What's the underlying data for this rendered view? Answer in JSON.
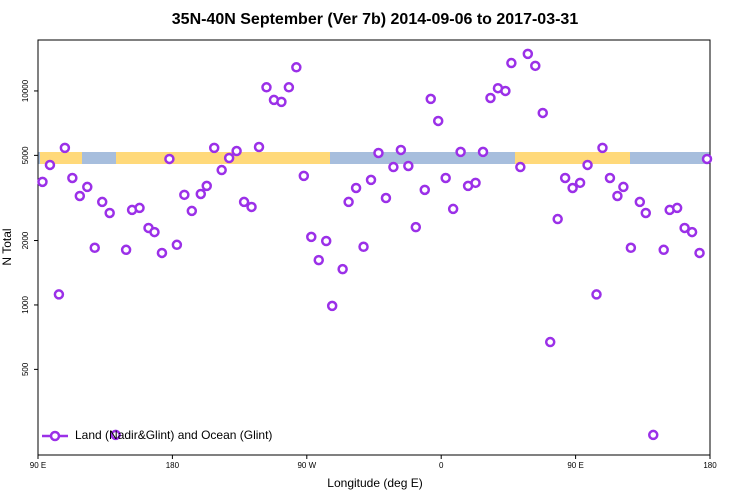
{
  "chart_data": {
    "type": "scatter",
    "title": "35N-40N September (Ver 7b)   2014-09-06 to 2017-03-31",
    "x_label": "Longitude (deg E)",
    "y_label": "N Total",
    "ylog": true,
    "legend": "bottom-left",
    "xlim": [
      90,
      540
    ],
    "ylim": [
      199,
      17300
    ],
    "xticks": [
      {
        "value": 90,
        "label": "90 E"
      },
      180,
      {
        "value": 270,
        "label": "90 W"
      },
      {
        "value": 360,
        "label": "0"
      },
      {
        "value": 450,
        "label": "90 E"
      },
      {
        "value": 540,
        "label": "180"
      }
    ],
    "yticks": [
      500,
      1000,
      2000,
      5000,
      10000
    ],
    "series": [
      {
        "name": "Land (Nadir&Glint) and Ocean (Glint)",
        "color": "#9b30e8",
        "x": [
          93,
          98,
          104,
          108,
          113,
          118,
          123,
          128,
          133,
          138,
          142,
          149,
          153,
          158,
          164,
          168,
          173,
          178,
          183,
          188,
          193,
          199,
          203,
          208,
          213,
          218,
          223,
          228,
          233,
          238,
          243,
          248,
          253,
          258,
          263,
          268,
          273,
          278,
          283,
          287,
          294,
          298,
          303,
          308,
          313,
          318,
          323,
          328,
          333,
          338,
          343,
          349,
          353,
          358,
          363,
          368,
          373,
          378,
          383,
          388,
          393,
          398,
          403,
          407,
          413,
          418,
          423,
          428,
          433,
          438,
          443,
          448,
          453,
          458,
          464,
          468,
          473,
          478,
          482,
          487,
          493,
          497,
          502,
          509,
          513,
          518,
          523,
          528,
          533,
          538
        ],
        "y": [
          3760,
          4510,
          1120,
          5420,
          3920,
          3230,
          3560,
          1850,
          3030,
          2690,
          247,
          1810,
          2780,
          2840,
          2290,
          2190,
          1750,
          4810,
          1910,
          3270,
          2750,
          3300,
          3600,
          5420,
          4270,
          4860,
          5240,
          3030,
          2870,
          5470,
          10400,
          9080,
          8890,
          10400,
          12900,
          4010,
          2080,
          1620,
          1990,
          990,
          1470,
          3030,
          3520,
          1870,
          3840,
          5130,
          3160,
          4410,
          5300,
          4460,
          2310,
          3450,
          9180,
          7240,
          3920,
          2810,
          5190,
          3600,
          3720,
          5190,
          9270,
          10300,
          10000,
          13500,
          4410,
          14900,
          13100,
          7890,
          671,
          2520,
          3920,
          3520,
          3720,
          4510,
          1120,
          5420,
          3920,
          3230,
          3560,
          1850,
          3030,
          2690,
          247,
          1810,
          2780,
          2840,
          2290,
          2190,
          1750,
          4810
        ]
      }
    ]
  }
}
